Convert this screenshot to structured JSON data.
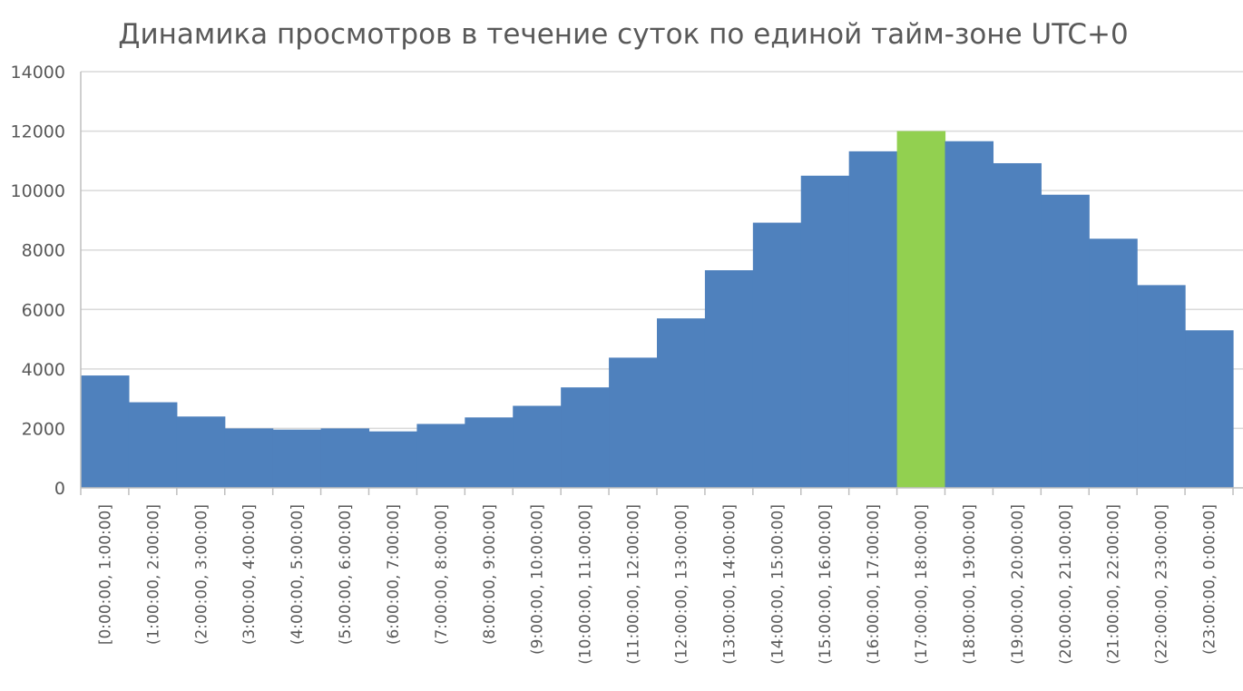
{
  "chart_data": {
    "type": "bar",
    "title": "Динамика просмотров в течение суток по единой тайм-зоне UTC+0",
    "xlabel": "",
    "ylabel": "",
    "ylim": [
      0,
      14000
    ],
    "y_ticks": [
      0,
      2000,
      4000,
      6000,
      8000,
      10000,
      12000,
      14000
    ],
    "grid": true,
    "legend": "none",
    "categories": [
      "[0:00:00, 1:00:00]",
      "(1:00:00, 2:00:00]",
      "(2:00:00, 3:00:00]",
      "(3:00:00, 4:00:00]",
      "(4:00:00, 5:00:00]",
      "(5:00:00, 6:00:00]",
      "(6:00:00, 7:00:00]",
      "(7:00:00, 8:00:00]",
      "(8:00:00, 9:00:00]",
      "(9:00:00, 10:00:00]",
      "(10:00:00, 11:00:00]",
      "(11:00:00, 12:00:00]",
      "(12:00:00, 13:00:00]",
      "(13:00:00, 14:00:00]",
      "(14:00:00, 15:00:00]",
      "(15:00:00, 16:00:00]",
      "(16:00:00, 17:00:00]",
      "(17:00:00, 18:00:00]",
      "(18:00:00, 19:00:00]",
      "(19:00:00, 20:00:00]",
      "(20:00:00, 21:00:00]",
      "(21:00:00, 22:00:00]",
      "(22:00:00, 23:00:00]",
      "(23:00:00, 0:00:00]"
    ],
    "series": [
      {
        "values": [
          3780,
          2880,
          2400,
          2000,
          1960,
          2000,
          1900,
          2150,
          2370,
          2760,
          3380,
          4380,
          5700,
          7320,
          8920,
          10500,
          11320,
          12000,
          11660,
          10920,
          9860,
          8380,
          6820,
          5300
        ],
        "color": "#4f81bd"
      }
    ],
    "highlight": {
      "index": 17,
      "color": "#92d050"
    }
  },
  "colors": {
    "bar": "#4f81bd",
    "highlight": "#92d050",
    "text": "#595959",
    "grid": "#d9d9d9",
    "axis": "#bfbfbf"
  }
}
